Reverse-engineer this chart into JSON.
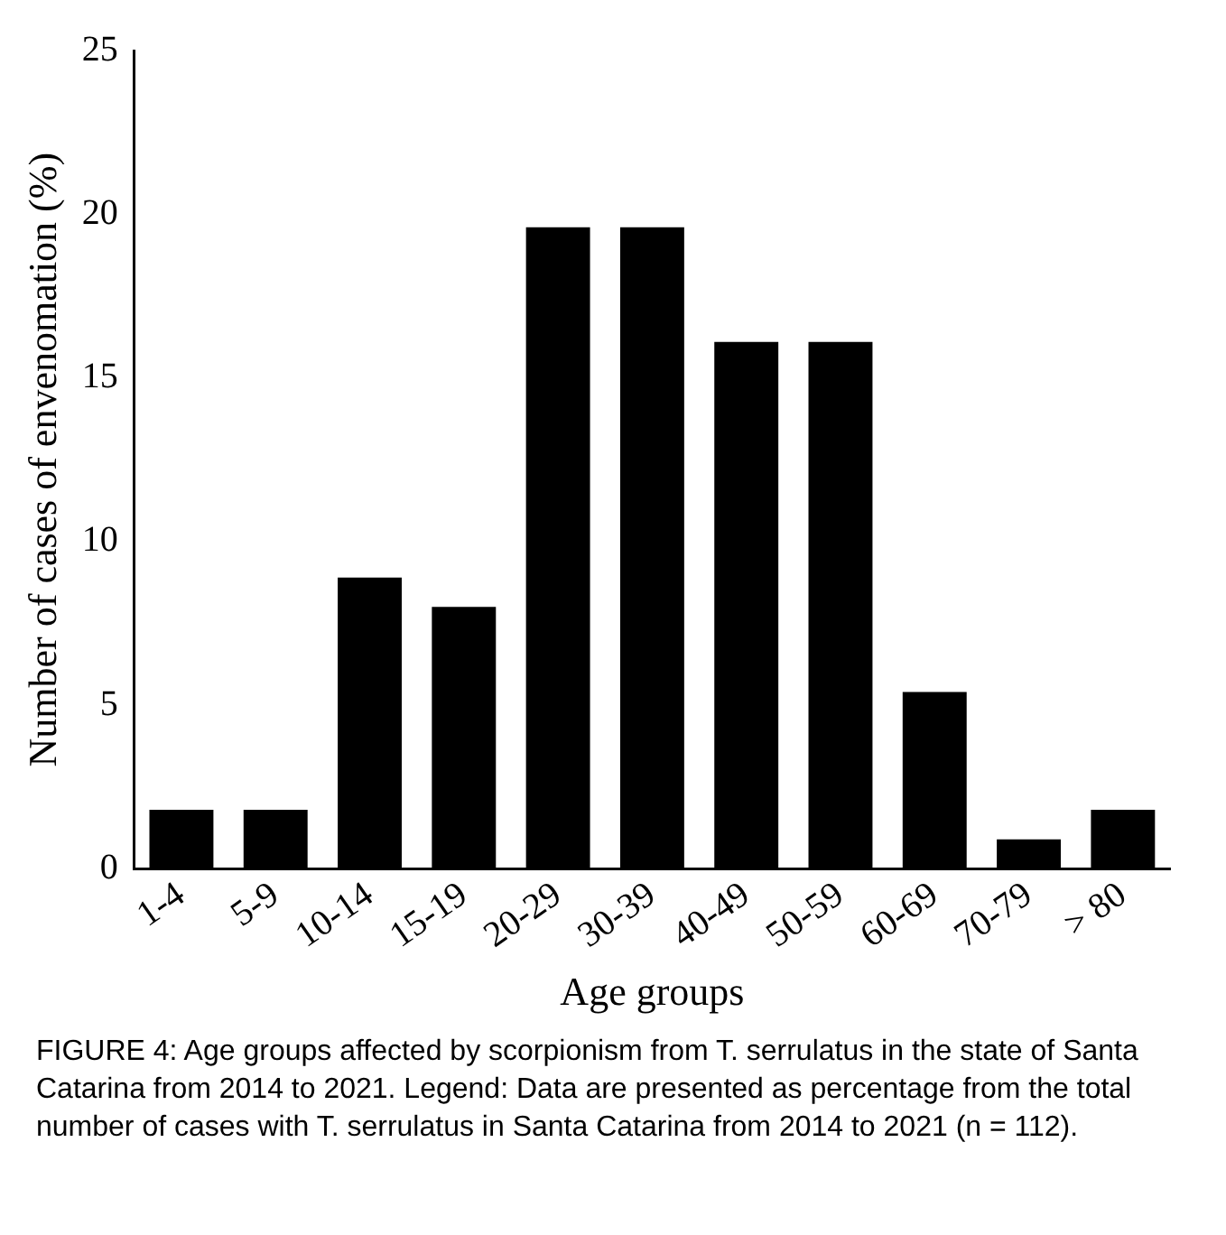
{
  "chart_data": {
    "type": "bar",
    "xlabel": "Age groups",
    "ylabel": "Number of cases of envenomation (%)",
    "categories": [
      "1-4",
      "5-9",
      "10-14",
      "15-19",
      "20-29",
      "30-39",
      "40-49",
      "50-59",
      "60-69",
      "70-79",
      "> 80"
    ],
    "values": [
      1.8,
      1.8,
      8.9,
      8.0,
      19.6,
      19.6,
      16.1,
      16.1,
      5.4,
      0.9,
      1.8
    ],
    "color": "#000000",
    "ylim": [
      0,
      25
    ],
    "yticks": [
      0,
      5,
      10,
      15,
      20,
      25
    ],
    "grid": false,
    "legend": false,
    "annotations": [
      "FIGURE 4: Age groups affected by scorpionism from T. serrulatus in the state of Santa Catarina from 2014 to 2021. Legend: Data are presented as percentage from the total number of cases with T. serrulatus in Santa Catarina from 2014 to 2021 (n = 112)."
    ]
  }
}
